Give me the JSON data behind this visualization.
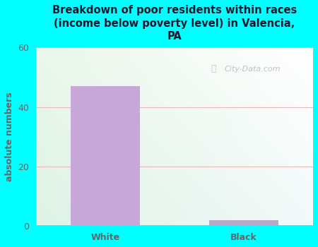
{
  "title": "Breakdown of poor residents within races\n(income below poverty level) in Valencia,\nPA",
  "categories": [
    "White",
    "Black"
  ],
  "values": [
    47,
    2
  ],
  "bar_color_white": "#c8a8d8",
  "bar_color_black": "#b8a8c8",
  "ylabel": "absolute numbers",
  "ylim": [
    0,
    60
  ],
  "yticks": [
    0,
    20,
    40,
    60
  ],
  "background_color": "#00ffff",
  "title_color": "#1a1a2e",
  "tick_label_color": "#666666",
  "ylabel_color": "#666666",
  "grid_color": "#e8b8b8",
  "title_fontsize": 10.5,
  "ylabel_fontsize": 9,
  "tick_fontsize": 9,
  "watermark": "City-Data.com",
  "plot_grad_topleft": "#e8f5e8",
  "plot_grad_botleft": "#d0ecd8",
  "plot_grad_topright": "#f8ffff",
  "plot_grad_botright": "#e8f8f0"
}
